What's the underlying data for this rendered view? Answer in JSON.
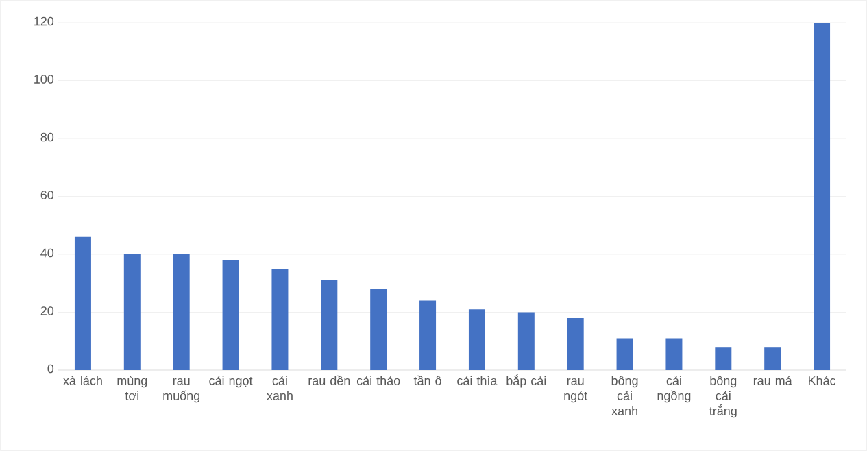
{
  "chart_data": {
    "type": "bar",
    "categories": [
      "xà lách",
      "mùng tơi",
      "rau muống",
      "cải ngọt",
      "cải xanh",
      "rau dền",
      "cải thảo",
      "tần ô",
      "cải thìa",
      "bắp cải",
      "rau ngót",
      "bông cải xanh",
      "cải ngồng",
      "bông cải trắng",
      "rau má",
      "Khác"
    ],
    "values": [
      46,
      40,
      40,
      38,
      35,
      31,
      28,
      24,
      21,
      20,
      18,
      11,
      11,
      8,
      8,
      120
    ],
    "color": "#4472c4",
    "ylim": [
      0,
      120
    ],
    "yticks": [
      0,
      20,
      40,
      60,
      80,
      100,
      120
    ],
    "grid": "y"
  }
}
